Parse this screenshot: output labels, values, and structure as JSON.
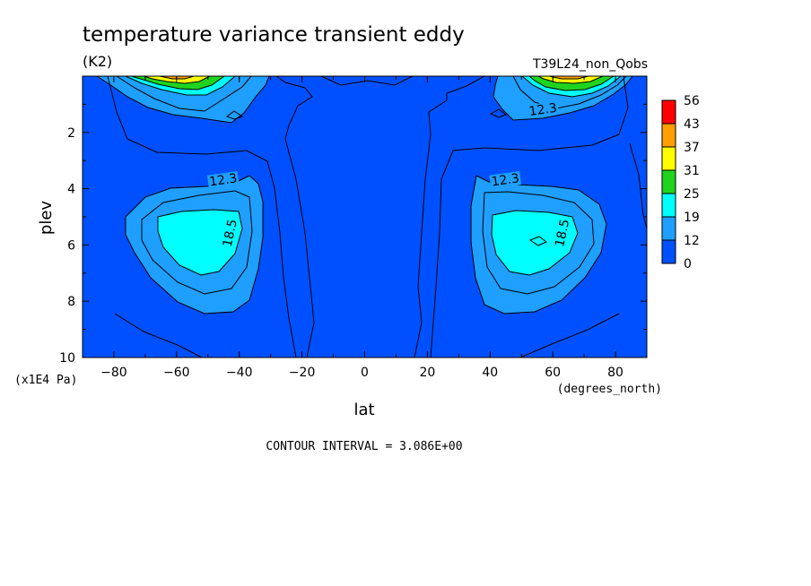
{
  "chart_data": {
    "type": "heatmap",
    "title": "temperature variance transient eddy",
    "units": "(K2)",
    "dataset": "T39L24_non_Qobs",
    "xlabel": "lat",
    "xunits": "(degrees_north)",
    "ylabel": "plev",
    "yunits": "(x1E4 Pa)",
    "xlim": [
      -90,
      90
    ],
    "ylim": [
      10,
      0
    ],
    "x_ticks": [
      "-80",
      "-60",
      "-40",
      "-20",
      "0",
      "20",
      "40",
      "60",
      "80"
    ],
    "y_ticks": [
      "2",
      "4",
      "6",
      "8",
      "10"
    ],
    "contour_interval_label": "CONTOUR INTERVAL = 3.086E+00",
    "contour_labels": [
      {
        "text": "12.3",
        "lat": -45,
        "plev": 3.8
      },
      {
        "text": "18.5",
        "lat": -42,
        "plev": 5.6
      },
      {
        "text": "12.3",
        "lat": 45,
        "plev": 3.8
      },
      {
        "text": "18.5",
        "lat": 64,
        "plev": 5.6
      },
      {
        "text": "12.3",
        "lat": 57,
        "plev": 1.3
      }
    ],
    "colorbar": {
      "labels": [
        "56",
        "43",
        "37",
        "31",
        "25",
        "19",
        "12",
        "0"
      ],
      "colors": [
        "#ff0000",
        "#ff9f00",
        "#ffff00",
        "#1fd41f",
        "#00ffff",
        "#1f9fff",
        "#0050ff"
      ]
    }
  }
}
